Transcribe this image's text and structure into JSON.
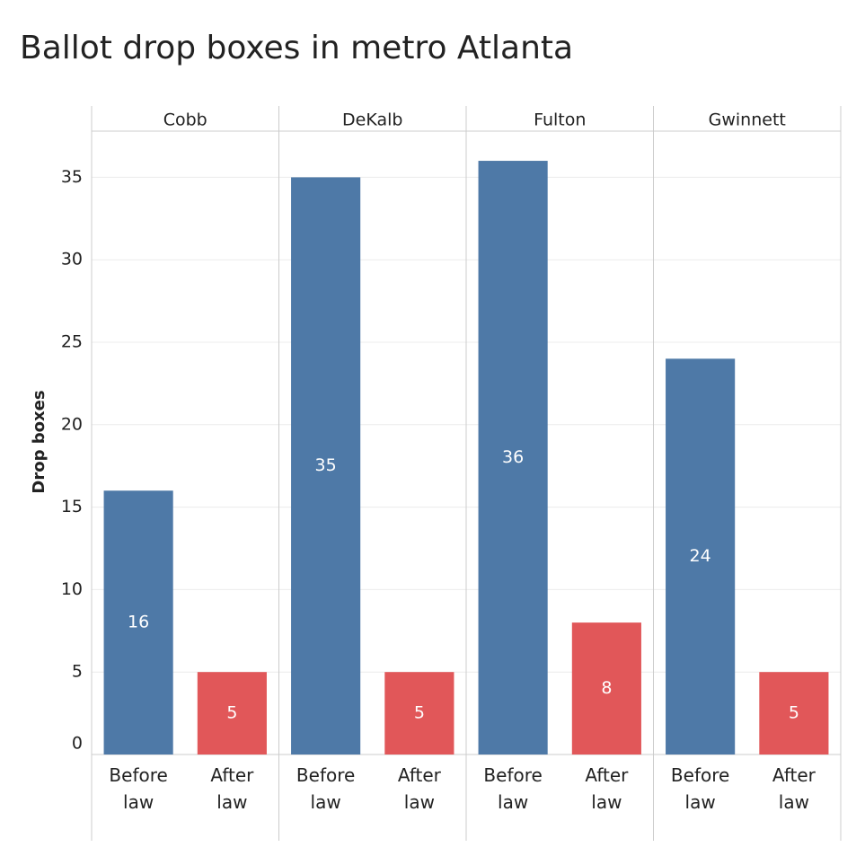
{
  "chart_data": {
    "type": "bar",
    "title": "Ballot drop boxes in metro Atlanta",
    "y_label": "Drop boxes",
    "categories": [
      "Before law",
      "After law"
    ],
    "colors": [
      "#4e79a7",
      "#e15759"
    ],
    "facets": [
      {
        "name": "Cobb",
        "values": [
          16,
          5
        ]
      },
      {
        "name": "DeKalb",
        "values": [
          35,
          5
        ]
      },
      {
        "name": "Fulton",
        "values": [
          36,
          8
        ]
      },
      {
        "name": "Gwinnett",
        "values": [
          24,
          5
        ]
      }
    ],
    "ylim": [
      0,
      37.8
    ],
    "yticks": [
      0,
      5,
      10,
      15,
      20,
      25,
      30,
      35
    ],
    "grid": true
  }
}
